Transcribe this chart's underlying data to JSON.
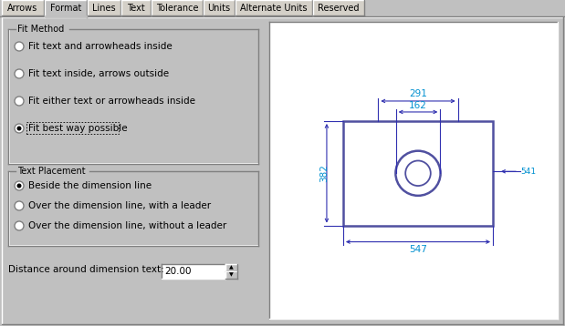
{
  "bg_color": "#c0c0c0",
  "white": "#ffffff",
  "black": "#000000",
  "dark_gray": "#808080",
  "light_gray": "#d4d0c8",
  "tab_labels": [
    "Arrows",
    "Format",
    "Lines",
    "Text",
    "Tolerance",
    "Units",
    "Alternate Units",
    "Reserved"
  ],
  "active_tab_idx": 1,
  "fit_method_label": "Fit Method",
  "fit_options": [
    "Fit text and arrowheads inside",
    "Fit text inside, arrows outside",
    "Fit either text or arrowheads inside",
    "Fit best way possible"
  ],
  "fit_selected": 3,
  "text_placement_label": "Text Placement",
  "text_options": [
    "Beside the dimension line",
    "Over the dimension line, with a leader",
    "Over the dimension line, without a leader"
  ],
  "text_selected": 0,
  "distance_label": "Distance around dimension text:",
  "distance_value": "20.00",
  "dim_color": "#3030b0",
  "shape_color": "#5050a0",
  "dim_text_color": "#0090d0",
  "dim_291": "291",
  "dim_162": "162",
  "dim_382": "382",
  "dim_547": "547",
  "dim_541": "541"
}
